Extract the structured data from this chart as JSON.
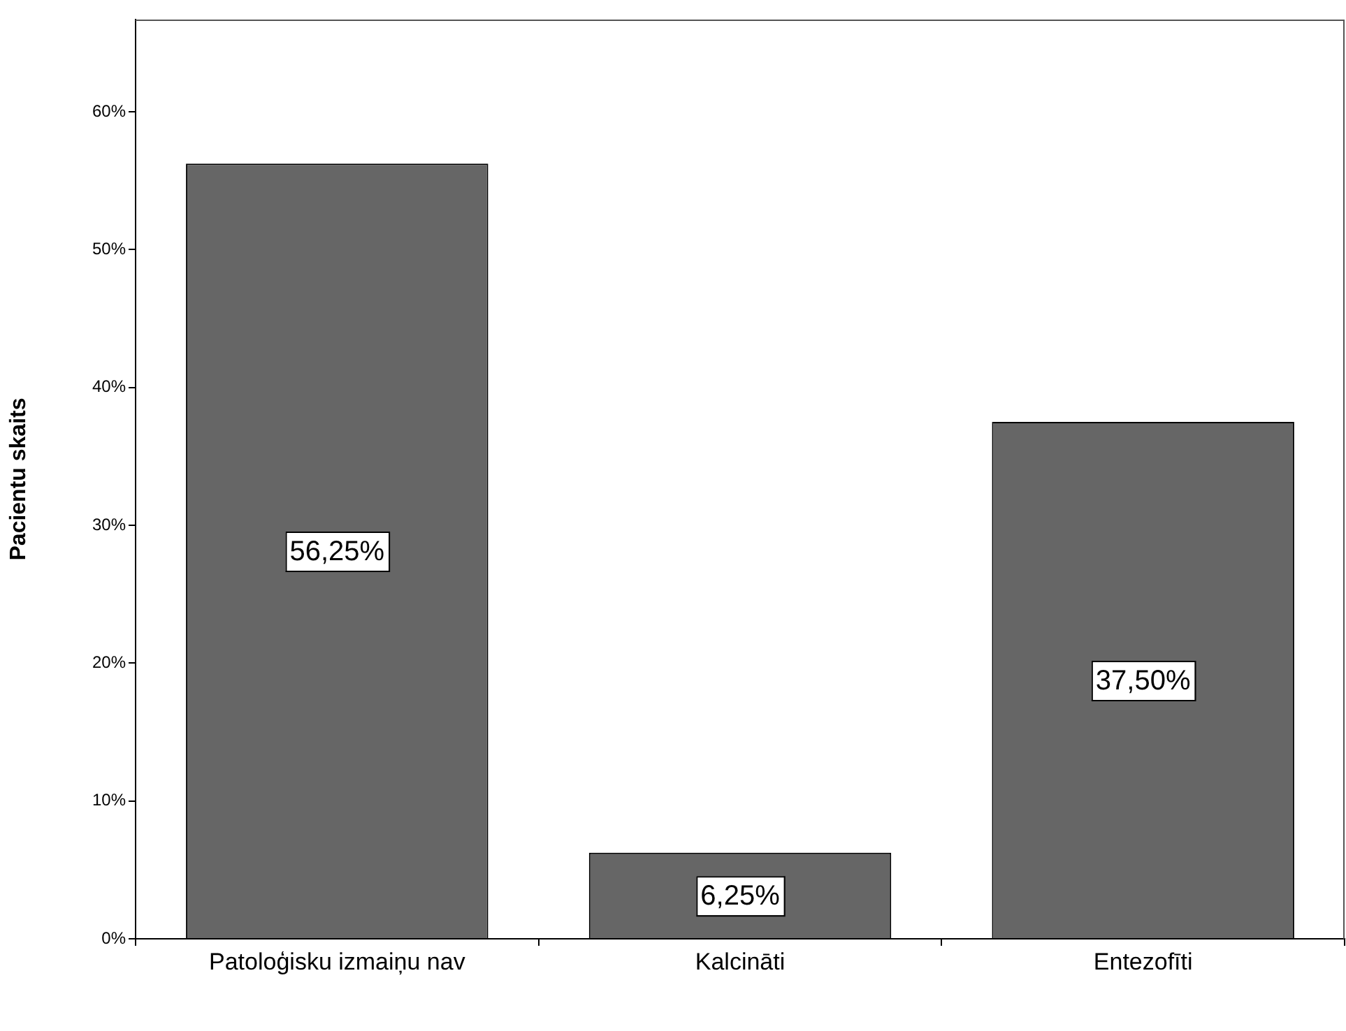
{
  "chart_data": {
    "type": "bar",
    "ylabel": "Pacientu skaits",
    "categories": [
      "Patoloģisku izmaiņu nav",
      "Kalcināti",
      "Entezofīti"
    ],
    "values": [
      56.25,
      6.25,
      37.5
    ],
    "value_labels": [
      "56,25%",
      "6,25%",
      "37,50%"
    ],
    "color": "#666666",
    "ylim": [
      0,
      66.7
    ],
    "yticks": [
      {
        "value": 0,
        "label": "0%"
      },
      {
        "value": 10,
        "label": "10%"
      },
      {
        "value": 20,
        "label": "20%"
      },
      {
        "value": 30,
        "label": "30%"
      },
      {
        "value": 40,
        "label": "40%"
      },
      {
        "value": 50,
        "label": "50%"
      },
      {
        "value": 60,
        "label": "60%"
      }
    ],
    "grid": false,
    "legend": false
  }
}
